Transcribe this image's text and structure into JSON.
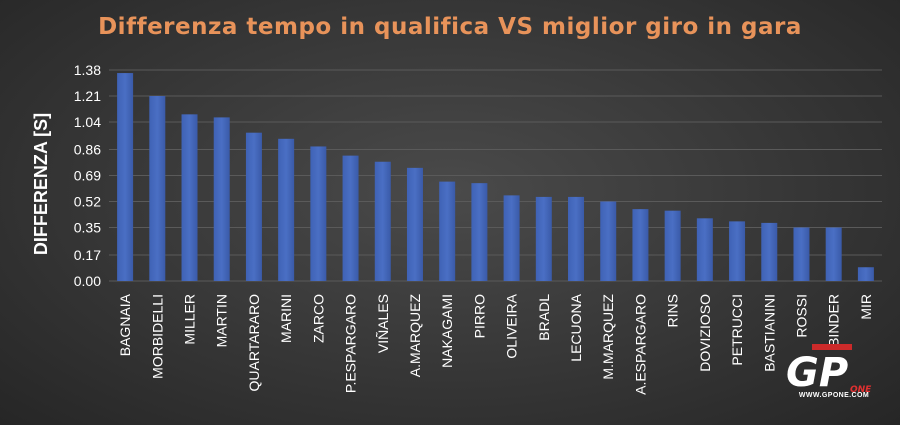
{
  "chart_data": {
    "type": "bar",
    "title": "Differenza tempo in qualifica VS miglior giro in gara",
    "xlabel": "",
    "ylabel": "DIFFERENZA [S]",
    "ylim": [
      0,
      1.38
    ],
    "yticks": [
      "0.00",
      "0.17",
      "0.35",
      "0.52",
      "0.69",
      "0.86",
      "1.04",
      "1.21",
      "1.38"
    ],
    "grid": true,
    "bar_color": "#4a6fc4",
    "categories": [
      "BAGNAIA",
      "MORBIDELLI",
      "MILLER",
      "MARTIN",
      "QUARTARARO",
      "MARINI",
      "ZARCO",
      "P.ESPARGARO",
      "VIÑALES",
      "A.MARQUEZ",
      "NAKAGAMI",
      "PIRRO",
      "OLIVEIRA",
      "BRADL",
      "LECUONA",
      "M.MARQUEZ",
      "A.ESPARGARO",
      "RINS",
      "DOVIZIOSO",
      "PETRUCCI",
      "BASTIANINI",
      "ROSSI",
      "BINDER",
      "MIR"
    ],
    "values": [
      1.36,
      1.21,
      1.09,
      1.07,
      0.97,
      0.93,
      0.88,
      0.82,
      0.78,
      0.74,
      0.65,
      0.64,
      0.56,
      0.55,
      0.55,
      0.52,
      0.47,
      0.46,
      0.41,
      0.39,
      0.38,
      0.35,
      0.35,
      0.09
    ]
  },
  "watermark": {
    "logo_text": "GP",
    "logo_sub": "ONE",
    "url": "WWW.GPONE.COM"
  }
}
